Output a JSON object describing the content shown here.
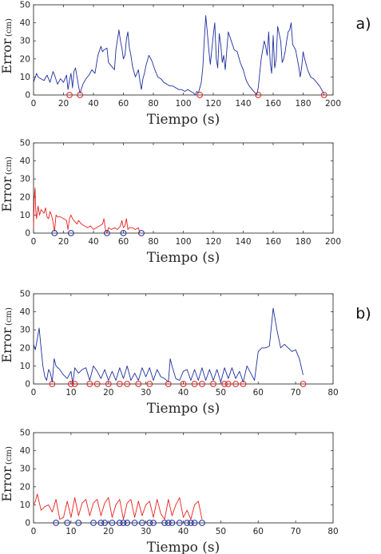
{
  "chart_data": [
    {
      "type": "line",
      "panel_tag": "a)",
      "xlabel": "Tiempo (s)",
      "ylabel": "Error",
      "yunit": "(cm)",
      "xlim": [
        0,
        200
      ],
      "ylim": [
        0,
        50
      ],
      "xticks": [
        0,
        20,
        40,
        60,
        80,
        100,
        120,
        140,
        160,
        180,
        200
      ],
      "yticks": [
        0,
        10,
        20,
        30,
        40,
        50
      ],
      "grid": false,
      "line_color": "#1f2f9e",
      "marker_color": "#e8201c",
      "series_x": [
        0,
        2,
        3,
        5,
        7,
        9,
        11,
        13,
        14,
        16,
        18,
        20,
        22,
        23,
        24,
        25,
        26,
        27,
        28,
        29,
        30,
        31,
        33,
        35,
        37,
        39,
        41,
        43,
        45,
        46,
        47,
        49,
        50,
        52,
        54,
        55,
        57,
        58,
        59,
        60,
        61,
        62,
        63,
        64,
        65,
        66,
        67,
        68,
        69,
        70,
        71,
        72,
        73,
        74,
        75,
        77,
        79,
        81,
        83,
        85,
        87,
        89,
        91,
        93,
        95,
        97,
        99,
        101,
        103,
        105,
        107,
        108,
        109,
        110,
        112,
        113,
        114,
        115,
        116,
        117,
        118,
        120,
        121,
        122,
        123,
        124,
        125,
        126,
        127,
        128,
        130,
        132,
        134,
        136,
        138,
        140,
        142,
        144,
        146,
        148,
        149,
        150,
        152,
        154,
        155,
        156,
        157,
        158,
        159,
        160,
        161,
        162,
        163,
        165,
        166,
        167,
        168,
        169,
        170,
        171,
        172,
        173,
        175,
        177,
        178,
        179,
        180,
        181,
        183,
        185,
        187,
        189,
        191,
        193,
        194
      ],
      "series_y": [
        7,
        12,
        10,
        9,
        8,
        11,
        7,
        13,
        11,
        6,
        9,
        7,
        11,
        3,
        8,
        12,
        4,
        13,
        15,
        10,
        5,
        1,
        6,
        9,
        11,
        14,
        12,
        22,
        27,
        24,
        25,
        26,
        18,
        16,
        14,
        25,
        36,
        30,
        26,
        20,
        22,
        31,
        35,
        26,
        22,
        16,
        13,
        10,
        12,
        14,
        8,
        3,
        9,
        12,
        16,
        22,
        19,
        14,
        10,
        9,
        7,
        6,
        5,
        5,
        4,
        3,
        3,
        2,
        3,
        2,
        1,
        0,
        2,
        1,
        7,
        15,
        30,
        44,
        35,
        25,
        17,
        33,
        40,
        20,
        15,
        34,
        28,
        18,
        22,
        14,
        35,
        30,
        25,
        24,
        18,
        14,
        8,
        5,
        3,
        1,
        0,
        4,
        20,
        30,
        27,
        22,
        35,
        18,
        12,
        33,
        15,
        20,
        38,
        30,
        18,
        20,
        24,
        30,
        35,
        36,
        40,
        28,
        25,
        16,
        10,
        15,
        24,
        20,
        14,
        10,
        9,
        7,
        5,
        2,
        0
      ],
      "markers_x": [
        24,
        31,
        111,
        150,
        194
      ],
      "markers_y": [
        0,
        0,
        0,
        0,
        0
      ]
    },
    {
      "type": "line",
      "xlabel": "Tiempo (s)",
      "ylabel": "Error",
      "yunit": "(cm)",
      "xlim": [
        0,
        200
      ],
      "ylim": [
        0,
        50
      ],
      "xticks": [
        0,
        20,
        40,
        60,
        80,
        100,
        120,
        140,
        160,
        180,
        200
      ],
      "yticks": [
        0,
        10,
        20,
        30,
        40,
        50
      ],
      "grid": false,
      "line_color": "#e8201c",
      "marker_color": "#1f2f9e",
      "series_x": [
        0,
        0.5,
        1,
        1.5,
        2,
        3,
        4,
        5,
        6,
        7,
        8,
        9,
        10,
        11,
        12,
        13,
        14,
        15,
        16,
        18,
        20,
        22,
        23,
        24,
        25,
        26,
        27,
        28,
        29,
        30,
        32,
        34,
        36,
        38,
        40,
        42,
        44,
        46,
        47,
        48,
        49,
        50,
        52,
        54,
        56,
        58,
        59,
        60,
        61,
        62,
        63,
        64,
        66,
        68,
        70,
        71,
        72
      ],
      "series_y": [
        3,
        20,
        25,
        12,
        8,
        15,
        10,
        13,
        12,
        11,
        14,
        9,
        8,
        12,
        10,
        6,
        1,
        10,
        9,
        9,
        8,
        7,
        2,
        8,
        10,
        8,
        7,
        6,
        5,
        7,
        5,
        4,
        3,
        4,
        2,
        3,
        4,
        5,
        8,
        2,
        0,
        3,
        2,
        3,
        2,
        4,
        7,
        3,
        4,
        8,
        2,
        3,
        3,
        2,
        3,
        0,
        0
      ],
      "markers_x": [
        14,
        25,
        49,
        60,
        72
      ],
      "markers_y": [
        0,
        0,
        0,
        0,
        0
      ]
    },
    {
      "type": "line",
      "panel_tag": "b)",
      "xlabel": "Tiempo (s)",
      "ylabel": "Error",
      "yunit": "(cm)",
      "xlim": [
        0,
        80
      ],
      "ylim": [
        0,
        50
      ],
      "xticks": [
        0,
        10,
        20,
        30,
        40,
        50,
        60,
        70,
        80
      ],
      "yticks": [
        0,
        10,
        20,
        30,
        40,
        50
      ],
      "grid": false,
      "line_color": "#1f2f9e",
      "marker_color": "#e8201c",
      "series_x": [
        0,
        0.5,
        1,
        1.5,
        2,
        2.5,
        3,
        3.5,
        4,
        4.5,
        5,
        5.5,
        6,
        7,
        8,
        9,
        10,
        10.5,
        11,
        12,
        13,
        14,
        15,
        16,
        17,
        18,
        19,
        20,
        21,
        22,
        23,
        24,
        25,
        26,
        27,
        28,
        29,
        30,
        31,
        32,
        33,
        34,
        35,
        36,
        36.5,
        37,
        38,
        39,
        40,
        41,
        42,
        43,
        44,
        45,
        46,
        47,
        48,
        49,
        50,
        51,
        52,
        53,
        54,
        55,
        56,
        57,
        58,
        59,
        60,
        61,
        62,
        63,
        64,
        65,
        66,
        67,
        68,
        69,
        70,
        71,
        72
      ],
      "series_y": [
        22,
        19,
        25,
        31,
        20,
        10,
        4,
        2,
        8,
        6,
        1,
        14,
        10,
        8,
        5,
        3,
        7,
        0,
        9,
        6,
        8,
        9,
        2,
        10,
        7,
        3,
        8,
        2,
        7,
        2,
        9,
        3,
        10,
        2,
        6,
        2,
        9,
        4,
        9,
        2,
        8,
        4,
        3,
        1,
        14,
        10,
        3,
        2,
        7,
        8,
        2,
        8,
        2,
        9,
        2,
        8,
        2,
        8,
        1,
        9,
        3,
        9,
        3,
        7,
        1,
        10,
        6,
        2,
        18,
        20,
        20,
        21,
        42,
        30,
        20,
        22,
        20,
        18,
        19,
        14,
        5,
        1
      ],
      "markers_x": [
        5,
        10,
        11,
        15,
        17,
        20,
        23,
        25,
        28,
        31,
        36,
        40,
        43,
        45,
        48,
        51,
        52,
        54,
        56,
        72
      ],
      "markers_y": [
        0,
        0,
        0,
        0,
        0,
        0,
        0,
        0,
        0,
        0,
        0,
        0,
        0,
        0,
        0,
        0,
        0,
        0,
        0,
        0
      ]
    },
    {
      "type": "line",
      "xlabel": "Tiempo (s)",
      "ylabel": "Error",
      "yunit": "(cm)",
      "xlim": [
        0,
        80
      ],
      "ylim": [
        0,
        50
      ],
      "xticks": [
        0,
        10,
        20,
        30,
        40,
        50,
        60,
        70,
        80
      ],
      "yticks": [
        0,
        10,
        20,
        30,
        40,
        50
      ],
      "grid": false,
      "line_color": "#e8201c",
      "marker_color": "#1f2f9e",
      "series_x": [
        0,
        0.5,
        1,
        2,
        3,
        4,
        5,
        6,
        7,
        8,
        9,
        10,
        11,
        12,
        13,
        14,
        15,
        16,
        17,
        18,
        19,
        20,
        21,
        22,
        23,
        24,
        25,
        26,
        27,
        28,
        29,
        30,
        31,
        32,
        33,
        34,
        35,
        36,
        37,
        38,
        39,
        40,
        41,
        42,
        43,
        44,
        45
      ],
      "series_y": [
        10,
        12,
        16,
        7,
        9,
        10,
        6,
        13,
        2,
        3,
        12,
        3,
        14,
        4,
        11,
        13,
        4,
        11,
        13,
        4,
        11,
        14,
        3,
        10,
        13,
        2,
        11,
        13,
        3,
        12,
        4,
        10,
        12,
        3,
        13,
        5,
        2,
        13,
        4,
        10,
        14,
        3,
        7,
        2,
        10,
        12,
        2
      ],
      "markers_x": [
        6,
        9,
        12,
        16,
        18,
        19,
        21,
        23,
        24,
        25,
        27,
        29,
        31,
        32,
        35,
        36,
        37,
        39,
        41,
        42,
        43,
        45
      ],
      "markers_y": [
        0,
        0,
        0,
        0,
        0,
        0,
        0,
        0,
        0,
        0,
        0,
        0,
        0,
        0,
        0,
        0,
        0,
        0,
        0,
        0,
        0,
        0
      ]
    }
  ]
}
